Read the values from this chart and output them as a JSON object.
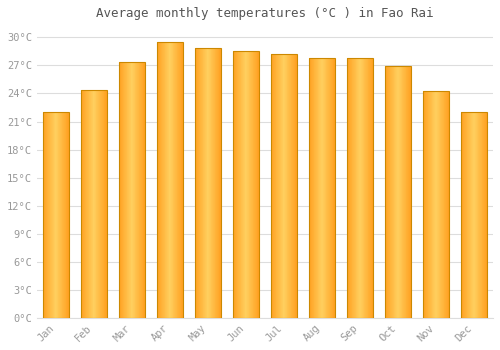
{
  "title": "Average monthly temperatures (°C ) in Fao Rai",
  "months": [
    "Jan",
    "Feb",
    "Mar",
    "Apr",
    "May",
    "Jun",
    "Jul",
    "Aug",
    "Sep",
    "Oct",
    "Nov",
    "Dec"
  ],
  "temperatures": [
    22.0,
    24.4,
    27.4,
    29.5,
    28.9,
    28.5,
    28.2,
    27.8,
    27.8,
    26.9,
    24.3,
    22.0
  ],
  "bar_color_center": "#FFD060",
  "bar_color_edge": "#FFA020",
  "bar_border_color": "#CC8800",
  "background_color": "#FFFFFF",
  "grid_color": "#DDDDDD",
  "text_color": "#999999",
  "title_color": "#555555",
  "ylim": [
    0,
    31
  ],
  "yticks": [
    0,
    3,
    6,
    9,
    12,
    15,
    18,
    21,
    24,
    27,
    30
  ],
  "ytick_labels": [
    "0°C",
    "3°C",
    "6°C",
    "9°C",
    "12°C",
    "15°C",
    "18°C",
    "21°C",
    "24°C",
    "27°C",
    "30°C"
  ],
  "bar_width": 0.7,
  "title_fontsize": 9,
  "tick_fontsize": 7.5
}
